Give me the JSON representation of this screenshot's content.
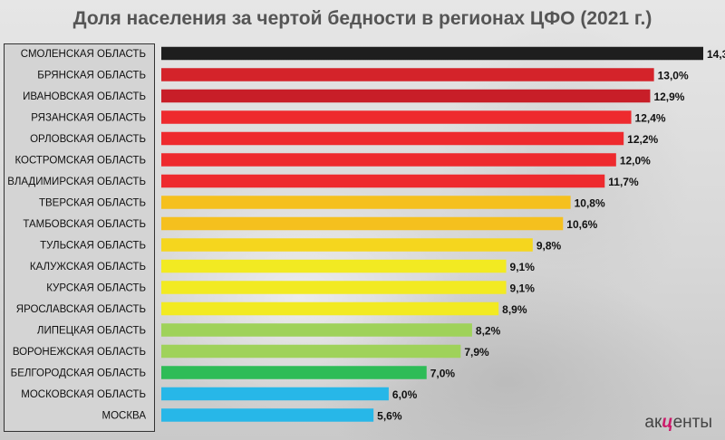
{
  "title": "Доля населения за чертой бедности в регионах ЦФО (2021 г.)",
  "logo": {
    "prefix": "ак",
    "mark": "ц",
    "suffix": "енты"
  },
  "chart_data": {
    "type": "bar",
    "orientation": "horizontal",
    "title": "Доля населения за чертой бедности в регионах ЦФО (2021 г.)",
    "categories": [
      "СМОЛЕНСКАЯ ОБЛАСТЬ",
      "БРЯНСКАЯ ОБЛАСТЬ",
      "ИВАНОВСКАЯ ОБЛАСТЬ",
      "РЯЗАНСКАЯ ОБЛАСТЬ",
      "ОРЛОВСКАЯ ОБЛАСТЬ",
      "КОСТРОМСКАЯ ОБЛАСТЬ",
      "ВЛАДИМИРСКАЯ ОБЛАСТЬ",
      "ТВЕРСКАЯ ОБЛАСТЬ",
      "ТАМБОВСКАЯ ОБЛАСТЬ",
      "ТУЛЬСКАЯ ОБЛАСТЬ",
      "КАЛУЖСКАЯ ОБЛАСТЬ",
      "КУРСКАЯ ОБЛАСТЬ",
      "ЯРОСЛАВСКАЯ ОБЛАСТЬ",
      "ЛИПЕЦКАЯ ОБЛАСТЬ",
      "ВОРОНЕЖСКАЯ ОБЛАСТЬ",
      "БЕЛГОРОДСКАЯ ОБЛАСТЬ",
      "МОСКОВСКАЯ ОБЛАСТЬ",
      "МОСКВА"
    ],
    "values": [
      14.3,
      13.0,
      12.9,
      12.4,
      12.2,
      12.0,
      11.7,
      10.8,
      10.6,
      9.8,
      9.1,
      9.1,
      8.9,
      8.2,
      7.9,
      7.0,
      6.0,
      5.6
    ],
    "value_labels": [
      "14,3%",
      "13,0%",
      "12,9%",
      "12,4%",
      "12,2%",
      "12,0%",
      "11,7%",
      "10,8%",
      "10,6%",
      "9,8%",
      "9,1%",
      "9,1%",
      "8,9%",
      "8,2%",
      "7,9%",
      "7,0%",
      "6,0%",
      "5,6%"
    ],
    "colors": [
      "#1e1e1e",
      "#d4232a",
      "#c81e28",
      "#ee2a2e",
      "#ee2a2e",
      "#ee2a2e",
      "#ee2a2e",
      "#f5c01e",
      "#f5c01e",
      "#f5d61e",
      "#f2ea22",
      "#f2ea22",
      "#f2ea22",
      "#9fd25a",
      "#9fd25a",
      "#2ebc57",
      "#27b7e8",
      "#27b7e8"
    ],
    "xlim": [
      0,
      14.3
    ],
    "grid": false,
    "legend": "none"
  }
}
